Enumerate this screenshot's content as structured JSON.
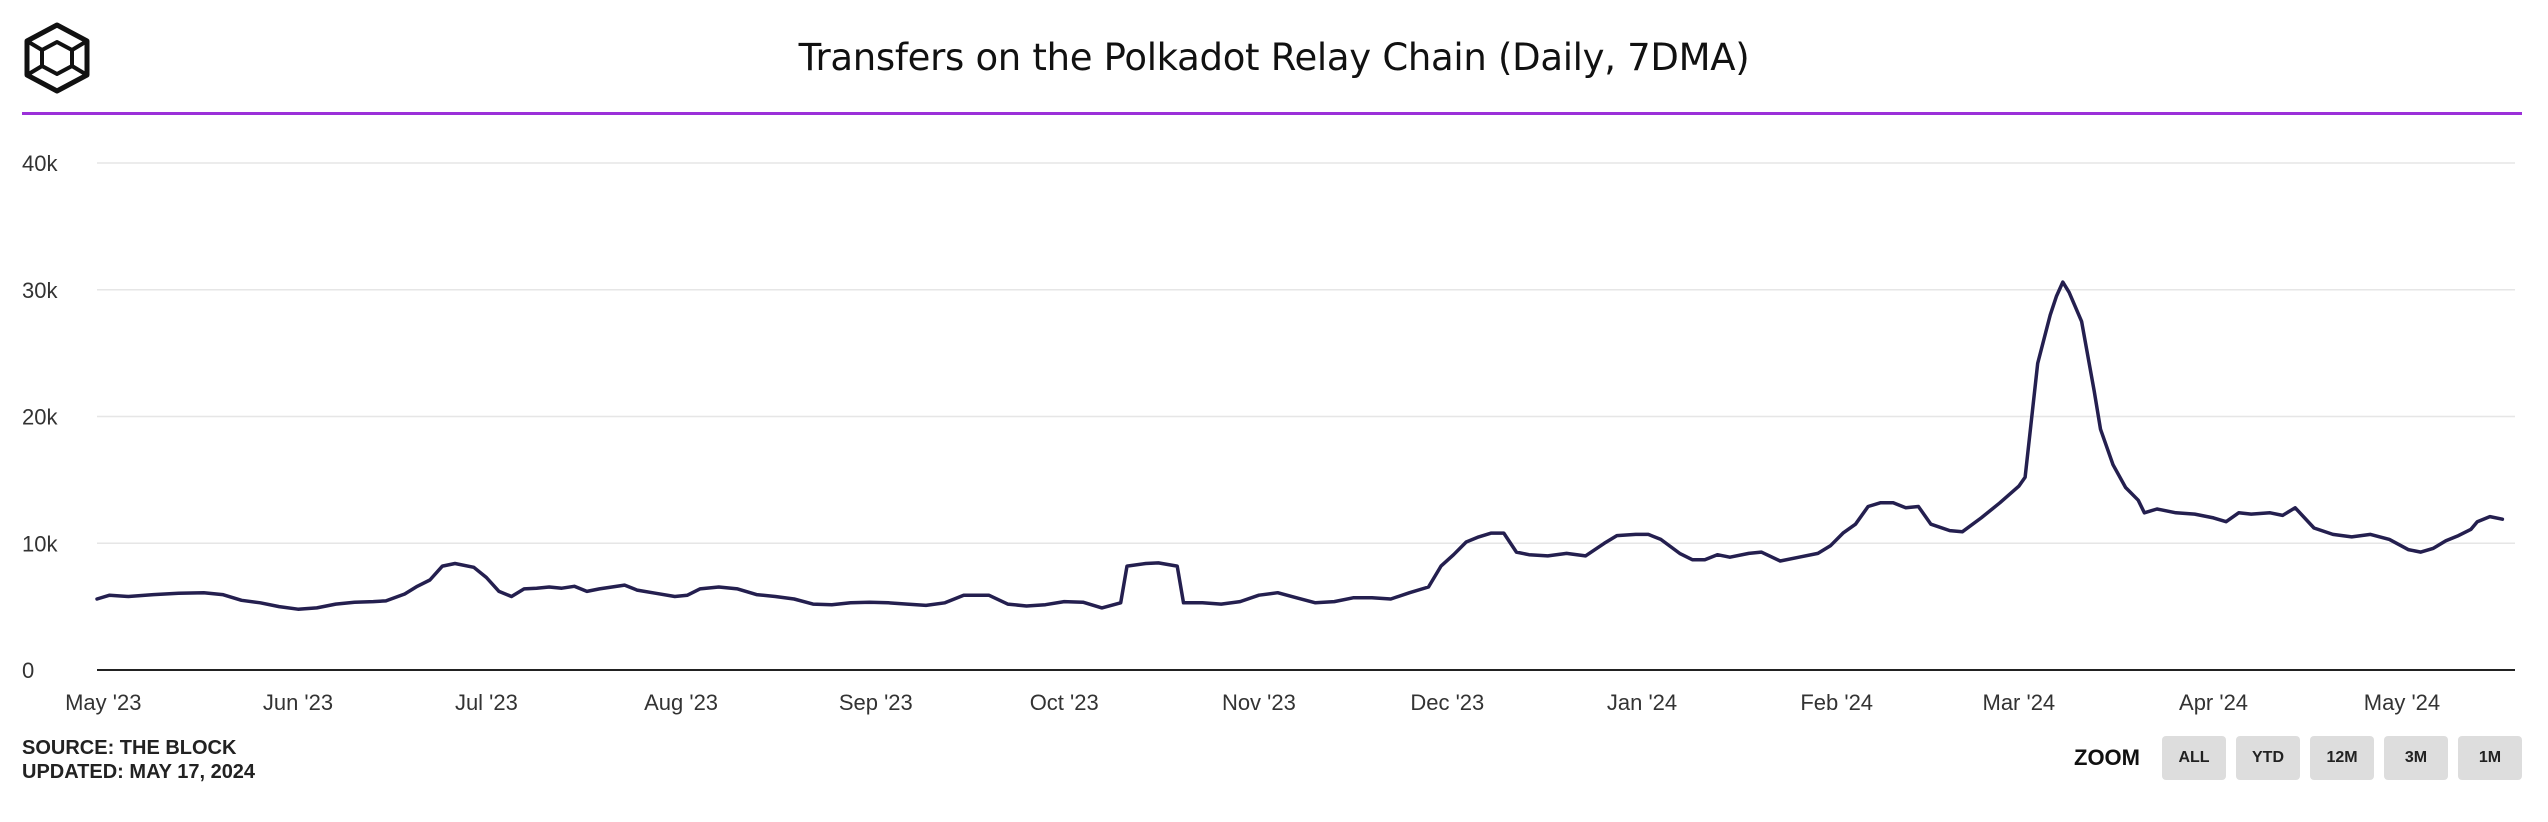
{
  "header": {
    "title": "Transfers on the Polkadot Relay Chain (Daily, 7DMA)",
    "logo_icon": "the-block-cube-logo-icon"
  },
  "colors": {
    "line": "#241f4f",
    "divider": "#9b30d9",
    "grid": "#e6e6e6",
    "axis": "#222222",
    "zoom_button_bg": "#dddddd"
  },
  "footer": {
    "source": "SOURCE: THE BLOCK",
    "updated": "UPDATED: MAY 17, 2024"
  },
  "zoom": {
    "label": "ZOOM",
    "buttons": [
      "ALL",
      "YTD",
      "12M",
      "3M",
      "1M"
    ]
  },
  "chart_data": {
    "type": "line",
    "title": "Transfers on the Polkadot Relay Chain (Daily, 7DMA)",
    "xlabel": "",
    "ylabel": "",
    "grid": true,
    "legend": "none",
    "ylim": [
      0,
      40000
    ],
    "xlim": [
      "2023-04-30",
      "2024-05-19"
    ],
    "y_ticks": [
      {
        "value": 0,
        "label": "0"
      },
      {
        "value": 10000,
        "label": "10k"
      },
      {
        "value": 20000,
        "label": "20k"
      },
      {
        "value": 30000,
        "label": "30k"
      },
      {
        "value": 40000,
        "label": "40k"
      }
    ],
    "x_ticks": [
      {
        "date": "2023-05-01",
        "label": "May '23"
      },
      {
        "date": "2023-06-01",
        "label": "Jun '23"
      },
      {
        "date": "2023-07-01",
        "label": "Jul '23"
      },
      {
        "date": "2023-08-01",
        "label": "Aug '23"
      },
      {
        "date": "2023-09-01",
        "label": "Sep '23"
      },
      {
        "date": "2023-10-01",
        "label": "Oct '23"
      },
      {
        "date": "2023-11-01",
        "label": "Nov '23"
      },
      {
        "date": "2023-12-01",
        "label": "Dec '23"
      },
      {
        "date": "2024-01-01",
        "label": "Jan '24"
      },
      {
        "date": "2024-02-01",
        "label": "Feb '24"
      },
      {
        "date": "2024-03-01",
        "label": "Mar '24"
      },
      {
        "date": "2024-04-01",
        "label": "Apr '24"
      },
      {
        "date": "2024-05-01",
        "label": "May '24"
      }
    ],
    "series": [
      {
        "name": "Transfers (7DMA)",
        "points": [
          [
            "2023-04-30",
            5600
          ],
          [
            "2023-05-02",
            5900
          ],
          [
            "2023-05-05",
            5800
          ],
          [
            "2023-05-09",
            5950
          ],
          [
            "2023-05-13",
            6050
          ],
          [
            "2023-05-17",
            6100
          ],
          [
            "2023-05-20",
            5950
          ],
          [
            "2023-05-23",
            5500
          ],
          [
            "2023-05-26",
            5300
          ],
          [
            "2023-05-29",
            5000
          ],
          [
            "2023-06-01",
            4800
          ],
          [
            "2023-06-04",
            4900
          ],
          [
            "2023-06-07",
            5200
          ],
          [
            "2023-06-10",
            5350
          ],
          [
            "2023-06-13",
            5400
          ],
          [
            "2023-06-15",
            5450
          ],
          [
            "2023-06-18",
            6000
          ],
          [
            "2023-06-20",
            6600
          ],
          [
            "2023-06-22",
            7100
          ],
          [
            "2023-06-24",
            8200
          ],
          [
            "2023-06-26",
            8400
          ],
          [
            "2023-06-29",
            8100
          ],
          [
            "2023-07-01",
            7300
          ],
          [
            "2023-07-03",
            6200
          ],
          [
            "2023-07-05",
            5800
          ],
          [
            "2023-07-07",
            6400
          ],
          [
            "2023-07-09",
            6450
          ],
          [
            "2023-07-11",
            6550
          ],
          [
            "2023-07-13",
            6450
          ],
          [
            "2023-07-15",
            6600
          ],
          [
            "2023-07-17",
            6200
          ],
          [
            "2023-07-19",
            6400
          ],
          [
            "2023-07-21",
            6550
          ],
          [
            "2023-07-23",
            6700
          ],
          [
            "2023-07-25",
            6300
          ],
          [
            "2023-07-28",
            6050
          ],
          [
            "2023-07-31",
            5800
          ],
          [
            "2023-08-02",
            5900
          ],
          [
            "2023-08-04",
            6400
          ],
          [
            "2023-08-07",
            6550
          ],
          [
            "2023-08-10",
            6400
          ],
          [
            "2023-08-13",
            5950
          ],
          [
            "2023-08-16",
            5800
          ],
          [
            "2023-08-19",
            5600
          ],
          [
            "2023-08-22",
            5200
          ],
          [
            "2023-08-25",
            5150
          ],
          [
            "2023-08-28",
            5300
          ],
          [
            "2023-08-31",
            5350
          ],
          [
            "2023-09-03",
            5300
          ],
          [
            "2023-09-06",
            5200
          ],
          [
            "2023-09-09",
            5100
          ],
          [
            "2023-09-12",
            5300
          ],
          [
            "2023-09-15",
            5900
          ],
          [
            "2023-09-19",
            5900
          ],
          [
            "2023-09-22",
            5200
          ],
          [
            "2023-09-25",
            5050
          ],
          [
            "2023-09-28",
            5150
          ],
          [
            "2023-10-01",
            5400
          ],
          [
            "2023-10-04",
            5350
          ],
          [
            "2023-10-07",
            4900
          ],
          [
            "2023-10-10",
            5300
          ],
          [
            "2023-10-11",
            8200
          ],
          [
            "2023-10-14",
            8400
          ],
          [
            "2023-10-16",
            8450
          ],
          [
            "2023-10-19",
            8200
          ],
          [
            "2023-10-20",
            5300
          ],
          [
            "2023-10-23",
            5300
          ],
          [
            "2023-10-26",
            5200
          ],
          [
            "2023-10-29",
            5400
          ],
          [
            "2023-11-01",
            5900
          ],
          [
            "2023-11-04",
            6100
          ],
          [
            "2023-11-07",
            5700
          ],
          [
            "2023-11-10",
            5300
          ],
          [
            "2023-11-13",
            5400
          ],
          [
            "2023-11-16",
            5700
          ],
          [
            "2023-11-19",
            5700
          ],
          [
            "2023-11-22",
            5600
          ],
          [
            "2023-11-25",
            6100
          ],
          [
            "2023-11-28",
            6550
          ],
          [
            "2023-11-30",
            8200
          ],
          [
            "2023-12-02",
            9100
          ],
          [
            "2023-12-04",
            10100
          ],
          [
            "2023-12-06",
            10500
          ],
          [
            "2023-12-08",
            10800
          ],
          [
            "2023-12-10",
            10800
          ],
          [
            "2023-12-12",
            9300
          ],
          [
            "2023-12-14",
            9100
          ],
          [
            "2023-12-17",
            9000
          ],
          [
            "2023-12-20",
            9200
          ],
          [
            "2023-12-23",
            9000
          ],
          [
            "2023-12-26",
            10000
          ],
          [
            "2023-12-28",
            10600
          ],
          [
            "2023-12-31",
            10700
          ],
          [
            "2024-01-02",
            10700
          ],
          [
            "2024-01-04",
            10300
          ],
          [
            "2024-01-07",
            9200
          ],
          [
            "2024-01-09",
            8700
          ],
          [
            "2024-01-11",
            8700
          ],
          [
            "2024-01-13",
            9100
          ],
          [
            "2024-01-15",
            8900
          ],
          [
            "2024-01-18",
            9200
          ],
          [
            "2024-01-20",
            9300
          ],
          [
            "2024-01-23",
            8600
          ],
          [
            "2024-01-26",
            8900
          ],
          [
            "2024-01-29",
            9200
          ],
          [
            "2024-01-31",
            9800
          ],
          [
            "2024-02-02",
            10800
          ],
          [
            "2024-02-04",
            11500
          ],
          [
            "2024-02-06",
            12900
          ],
          [
            "2024-02-08",
            13200
          ],
          [
            "2024-02-10",
            13200
          ],
          [
            "2024-02-12",
            12800
          ],
          [
            "2024-02-14",
            12900
          ],
          [
            "2024-02-16",
            11500
          ],
          [
            "2024-02-19",
            11000
          ],
          [
            "2024-02-21",
            10900
          ],
          [
            "2024-02-24",
            12000
          ],
          [
            "2024-02-27",
            13200
          ],
          [
            "2024-03-01",
            14500
          ],
          [
            "2024-03-02",
            15200
          ],
          [
            "2024-03-04",
            24200
          ],
          [
            "2024-03-06",
            28000
          ],
          [
            "2024-03-07",
            29500
          ],
          [
            "2024-03-08",
            30600
          ],
          [
            "2024-03-09",
            29800
          ],
          [
            "2024-03-11",
            27500
          ],
          [
            "2024-03-13",
            22000
          ],
          [
            "2024-03-14",
            19000
          ],
          [
            "2024-03-16",
            16200
          ],
          [
            "2024-03-18",
            14400
          ],
          [
            "2024-03-20",
            13400
          ],
          [
            "2024-03-21",
            12400
          ],
          [
            "2024-03-23",
            12700
          ],
          [
            "2024-03-26",
            12400
          ],
          [
            "2024-03-29",
            12300
          ],
          [
            "2024-04-01",
            12000
          ],
          [
            "2024-04-03",
            11700
          ],
          [
            "2024-04-05",
            12400
          ],
          [
            "2024-04-07",
            12300
          ],
          [
            "2024-04-10",
            12400
          ],
          [
            "2024-04-12",
            12200
          ],
          [
            "2024-04-14",
            12800
          ],
          [
            "2024-04-17",
            11200
          ],
          [
            "2024-04-20",
            10700
          ],
          [
            "2024-04-23",
            10500
          ],
          [
            "2024-04-26",
            10700
          ],
          [
            "2024-04-29",
            10300
          ],
          [
            "2024-05-02",
            9500
          ],
          [
            "2024-05-04",
            9300
          ],
          [
            "2024-05-06",
            9600
          ],
          [
            "2024-05-08",
            10200
          ],
          [
            "2024-05-10",
            10600
          ],
          [
            "2024-05-12",
            11100
          ],
          [
            "2024-05-13",
            11700
          ],
          [
            "2024-05-15",
            12100
          ],
          [
            "2024-05-17",
            11900
          ]
        ]
      }
    ]
  }
}
